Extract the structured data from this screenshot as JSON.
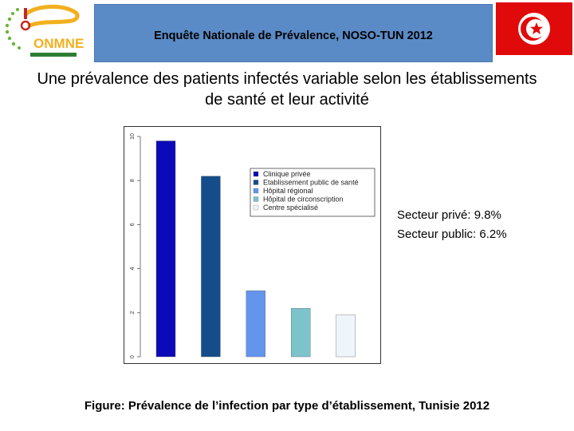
{
  "header": {
    "title": "Enquête Nationale de Prévalence, NOSO-TUN 2012",
    "logo_text": "ONMNE"
  },
  "subtitle_line1": "Une prévalence des patients infectés variable selon les établissements",
  "subtitle_line2": "de santé et leur activité",
  "stats": {
    "prive": "Secteur privé: 9.8%",
    "public": "Secteur public: 6.2%"
  },
  "caption": "Figure:  Prévalence de l’infection par type d’établissement, Tunisie 2012",
  "chart_data": {
    "type": "bar",
    "categories": [
      "Clinique privée",
      "Etablissement public de santé",
      "Hôpital régional",
      "Hôpital de circonscription",
      "Centre spécialisé"
    ],
    "values": [
      9.8,
      8.2,
      3.0,
      2.2,
      1.9
    ],
    "colors": [
      "#0a0ab8",
      "#154d8a",
      "#6495ed",
      "#7cc3cc",
      "#eef6fc"
    ],
    "ylim": [
      0,
      10
    ],
    "yticks": [
      0,
      2,
      4,
      6,
      8,
      10
    ],
    "legend": [
      "Clinique privée",
      "Etablissement public de santé",
      "Hôpital régional",
      "Hôpital de circonscription",
      "Centre spécialisé"
    ],
    "legend_position": "top-right",
    "grid": false
  }
}
